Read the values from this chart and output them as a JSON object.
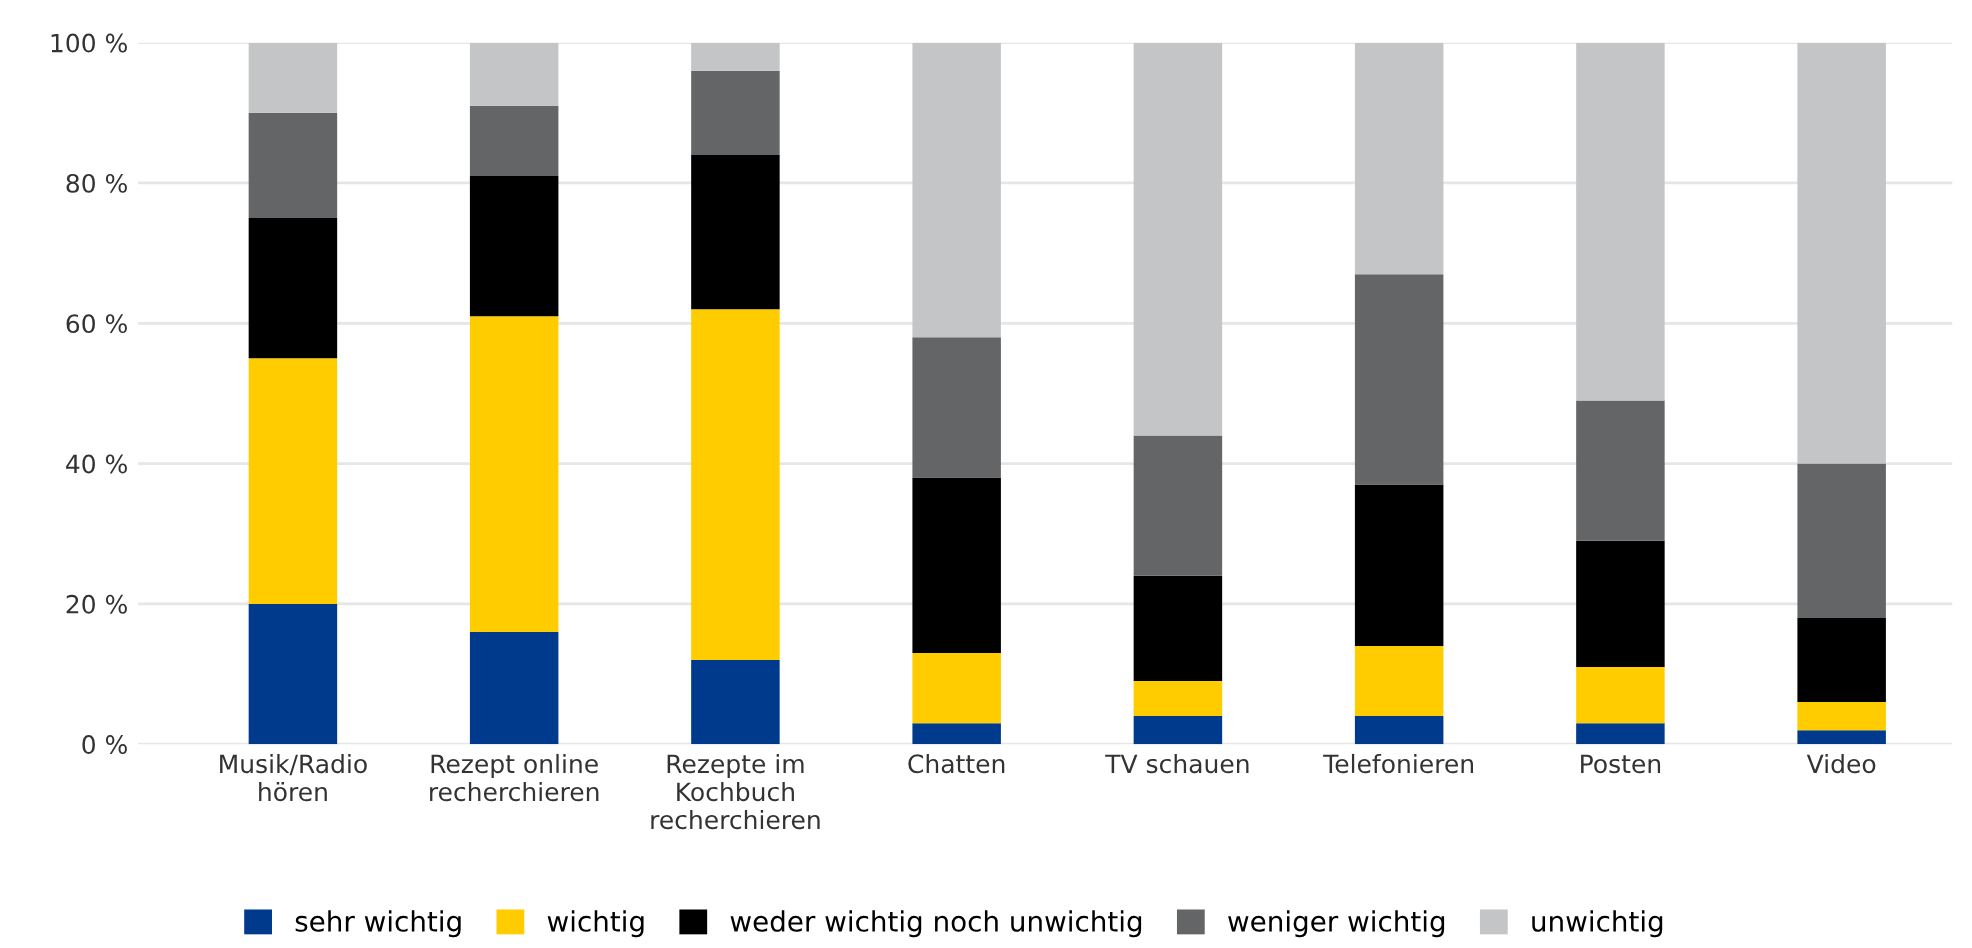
{
  "chart_data": {
    "type": "bar",
    "stacked": true,
    "categories": [
      "Musik/Radio\nhören",
      "Rezept online\nrecherchieren",
      "Rezepte im\nKochbuch\nrecherchieren",
      "Chatten",
      "TV schauen",
      "Telefonieren",
      "Posten",
      "Video"
    ],
    "series": [
      {
        "name": "sehr wichtig",
        "color": "#003a8c",
        "values": [
          20,
          16,
          12,
          3,
          4,
          4,
          3,
          2
        ]
      },
      {
        "name": "wichtig",
        "color": "#ffcc00",
        "values": [
          35,
          45,
          50,
          10,
          5,
          10,
          8,
          4
        ]
      },
      {
        "name": "weder wichtig noch unwichtig",
        "color": "#000000",
        "values": [
          20,
          20,
          22,
          25,
          15,
          23,
          18,
          12
        ]
      },
      {
        "name": "weniger wichtig",
        "color": "#646567",
        "values": [
          15,
          10,
          12,
          20,
          20,
          30,
          20,
          22
        ]
      },
      {
        "name": "unwichtig",
        "color": "#c4c5c7",
        "values": [
          10,
          9,
          4,
          42,
          56,
          33,
          51,
          60
        ]
      }
    ],
    "ylim": [
      0,
      100
    ],
    "yticks": [
      {
        "value": 0,
        "label": "0 %"
      },
      {
        "value": 20,
        "label": "20 %"
      },
      {
        "value": 40,
        "label": "40 %"
      },
      {
        "value": 60,
        "label": "60 %"
      },
      {
        "value": 80,
        "label": "80 %"
      },
      {
        "value": 100,
        "label": "100 %"
      }
    ],
    "grid": "y",
    "legend": "bottom"
  }
}
